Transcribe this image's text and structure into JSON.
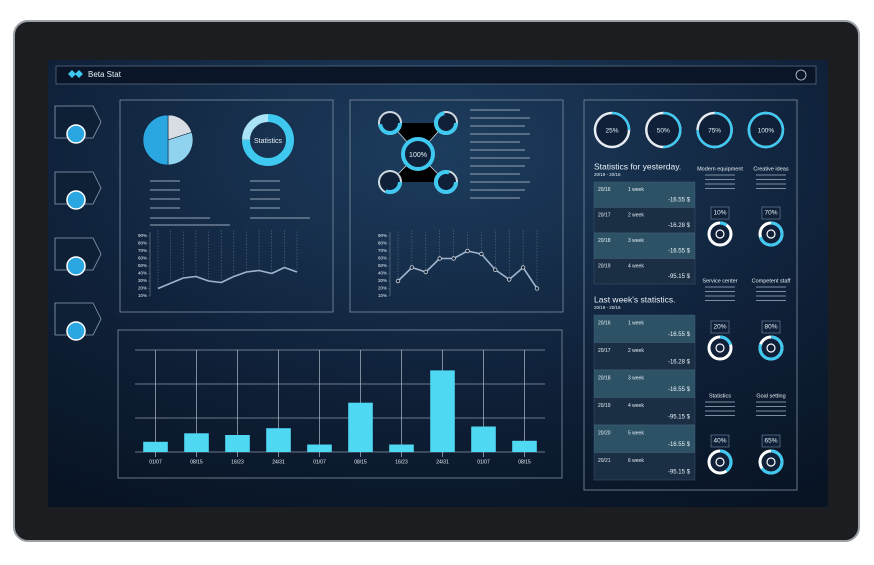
{
  "header": {
    "title": "Beta Stat"
  },
  "hub": {
    "label": "100%"
  },
  "chart_data": [
    {
      "type": "pie",
      "values": [
        20,
        30,
        50
      ],
      "colors": [
        "#d8dde3",
        "#8fd3ef",
        "#2aa6e0"
      ]
    },
    {
      "type": "donut",
      "title": "Statistics",
      "values": [
        75,
        25
      ],
      "colors": [
        "#3fc8f0",
        "#a9e3f5"
      ]
    },
    {
      "type": "line",
      "values": [
        20,
        27,
        34,
        36,
        30,
        28,
        36,
        42,
        44,
        40,
        48,
        42
      ],
      "color": "#9fb4cc",
      "ylim": [
        10,
        90
      ],
      "yticks": [
        {
          "value": 90,
          "label": "90%"
        },
        {
          "value": 80,
          "label": "80%"
        },
        {
          "value": 70,
          "label": "70%"
        },
        {
          "value": 60,
          "label": "60%"
        },
        {
          "value": 50,
          "label": "50%"
        },
        {
          "value": 40,
          "label": "40%"
        },
        {
          "value": 30,
          "label": "30%"
        },
        {
          "value": 20,
          "label": "20%"
        },
        {
          "value": 10,
          "label": "10%"
        }
      ]
    },
    {
      "type": "line",
      "values": [
        30,
        48,
        42,
        60,
        60,
        70,
        66,
        45,
        32,
        48,
        20
      ],
      "color": "#9fb4cc",
      "markers": true,
      "ylim": [
        10,
        90
      ],
      "yticks": [
        {
          "value": 90,
          "label": "90%"
        },
        {
          "value": 80,
          "label": "80%"
        },
        {
          "value": 70,
          "label": "70%"
        },
        {
          "value": 60,
          "label": "60%"
        },
        {
          "value": 50,
          "label": "50%"
        },
        {
          "value": 40,
          "label": "40%"
        },
        {
          "value": 30,
          "label": "30%"
        },
        {
          "value": 20,
          "label": "20%"
        },
        {
          "value": 10,
          "label": "10%"
        }
      ]
    },
    {
      "type": "bar",
      "categories": [
        "01/07",
        "08/15",
        "16/23",
        "24/31",
        "01/07",
        "08/15",
        "16/23",
        "24/31",
        "01/07",
        "08/15"
      ],
      "values": [
        0.3,
        0.55,
        0.5,
        0.7,
        0.22,
        1.45,
        0.22,
        2.4,
        0.75,
        0.33
      ],
      "color": "#4fd8f2",
      "ylim": [
        0,
        3
      ],
      "yticks": [
        0,
        1,
        2,
        3
      ],
      "grid": true
    }
  ],
  "rings": [
    {
      "label": "25%",
      "value": 25
    },
    {
      "label": "50%",
      "value": 50
    },
    {
      "label": "75%",
      "value": 75
    },
    {
      "label": "100%",
      "value": 100
    }
  ],
  "yesterday": {
    "title": "Statistics for yesterday.",
    "range": "20/19 - 20/16",
    "rows": [
      [
        "20/16",
        "1 week",
        "-16.55 $"
      ],
      [
        "20/17",
        "2 week",
        "-16.28 $"
      ],
      [
        "20/18",
        "3 week",
        "-16.55 $"
      ],
      [
        "20/19",
        "4 week",
        "-95.15 $"
      ]
    ]
  },
  "last_week": {
    "title": "Last week's statistics.",
    "range": "20/19 - 20/16",
    "rows": [
      [
        "20/16",
        "1 week",
        "-16.55 $"
      ],
      [
        "20/17",
        "2 week",
        "-16.28 $"
      ],
      [
        "20/18",
        "3 week",
        "-16.55 $"
      ],
      [
        "20/19",
        "4 week",
        "-95.15 $"
      ],
      [
        "20/20",
        "5 week",
        "-16.55 $"
      ],
      [
        "20/21",
        "6 week",
        "-95.15 $"
      ]
    ]
  },
  "cards": [
    {
      "title": "Modern equipment",
      "label": "10%",
      "value": 10
    },
    {
      "title": "Creative ideas",
      "label": "70%",
      "value": 70
    },
    {
      "title": "Service center",
      "label": "20%",
      "value": 20
    },
    {
      "title": "Competent staff",
      "label": "80%",
      "value": 80
    },
    {
      "title": "Statistics",
      "label": "40%",
      "value": 40
    },
    {
      "title": "Goal setting",
      "label": "65%",
      "value": 65
    }
  ]
}
